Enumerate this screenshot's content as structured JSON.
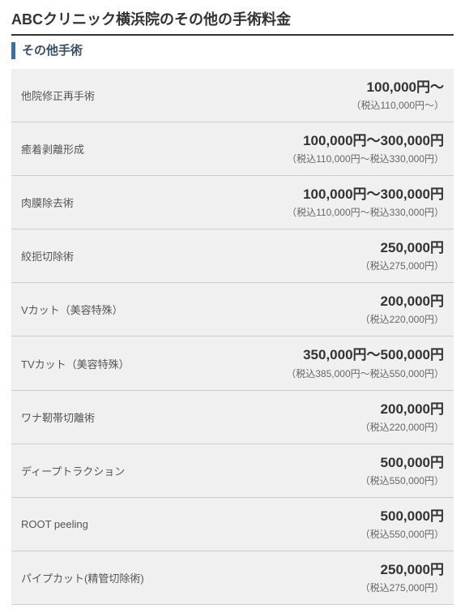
{
  "page_title": "ABCクリニック横浜院のその他の手術料金",
  "section_title": "その他手術",
  "rows": [
    {
      "name": "他院修正再手術",
      "price": "100,000円〜",
      "tax": "（税込110,000円〜）"
    },
    {
      "name": "癒着剥離形成",
      "price": "100,000円〜300,000円",
      "tax": "（税込110,000円〜税込330,000円）"
    },
    {
      "name": "肉膜除去術",
      "price": "100,000円〜300,000円",
      "tax": "（税込110,000円〜税込330,000円）"
    },
    {
      "name": "絞扼切除術",
      "price": "250,000円",
      "tax": "（税込275,000円）"
    },
    {
      "name": "Vカット（美容特殊）",
      "price": "200,000円",
      "tax": "（税込220,000円）"
    },
    {
      "name": "TVカット（美容特殊）",
      "price": "350,000円〜500,000円",
      "tax": "（税込385,000円〜税込550,000円）"
    },
    {
      "name": "ワナ靭帯切離術",
      "price": "200,000円",
      "tax": "（税込220,000円）"
    },
    {
      "name": "ディープトラクション",
      "price": "500,000円",
      "tax": "（税込550,000円）"
    },
    {
      "name": "ROOT peeling",
      "price": "500,000円",
      "tax": "（税込550,000円）"
    },
    {
      "name": "パイプカット(精管切除術)",
      "price": "250,000円",
      "tax": "（税込275,000円）"
    }
  ],
  "colors": {
    "title_text": "#333333",
    "section_text": "#3a506b",
    "section_border": "#3a6ea5",
    "row_bg": "#f0f0f0",
    "row_border": "#cccccc",
    "item_text": "#555555",
    "price_text": "#333333",
    "tax_text": "#666666",
    "background": "#ffffff"
  },
  "typography": {
    "page_title_fontsize": 18,
    "section_title_fontsize": 15,
    "item_name_fontsize": 13,
    "price_main_fontsize": 17,
    "price_tax_fontsize": 12
  }
}
